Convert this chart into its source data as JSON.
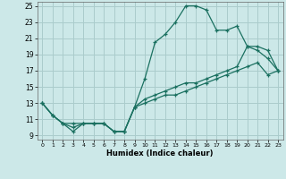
{
  "xlabel": "Humidex (Indice chaleur)",
  "background_color": "#cce8e8",
  "grid_color": "#aacccc",
  "line_color": "#1a7060",
  "xlim": [
    -0.5,
    23.5
  ],
  "ylim": [
    8.5,
    25.5
  ],
  "xticks": [
    0,
    1,
    2,
    3,
    4,
    5,
    6,
    7,
    8,
    9,
    10,
    11,
    12,
    13,
    14,
    15,
    16,
    17,
    18,
    19,
    20,
    21,
    22,
    23
  ],
  "yticks": [
    9,
    11,
    13,
    15,
    17,
    19,
    21,
    23,
    25
  ],
  "line1_x": [
    0,
    1,
    2,
    3,
    4,
    5,
    6,
    7,
    8,
    9,
    10,
    11,
    12,
    13,
    14,
    15,
    16,
    17,
    18,
    19,
    20,
    21,
    22,
    23
  ],
  "line1_y": [
    13,
    11.5,
    10.5,
    10,
    10.5,
    10.5,
    10.5,
    9.5,
    9.5,
    12.5,
    16,
    20.5,
    21.5,
    23,
    25,
    25,
    24.5,
    22,
    22,
    22.5,
    20,
    19.5,
    18.5,
    17
  ],
  "line2_x": [
    0,
    1,
    2,
    3,
    4,
    5,
    6,
    7,
    8,
    9,
    10,
    11,
    12,
    13,
    14,
    15,
    16,
    17,
    18,
    19,
    20,
    21,
    22,
    23
  ],
  "line2_y": [
    13,
    11.5,
    10.5,
    10.5,
    10.5,
    10.5,
    10.5,
    9.5,
    9.5,
    12.5,
    13.5,
    14,
    14.5,
    15,
    15.5,
    15.5,
    16,
    16.5,
    17,
    17.5,
    20.0,
    20,
    19.5,
    17
  ],
  "line3_x": [
    0,
    1,
    2,
    3,
    4,
    5,
    6,
    7,
    8,
    9,
    10,
    11,
    12,
    13,
    14,
    15,
    16,
    17,
    18,
    19,
    20,
    21,
    22,
    23
  ],
  "line3_y": [
    13,
    11.5,
    10.5,
    9.5,
    10.5,
    10.5,
    10.5,
    9.5,
    9.5,
    12.5,
    13,
    13.5,
    14,
    14,
    14.5,
    15,
    15.5,
    16,
    16.5,
    17,
    17.5,
    18,
    16.5,
    17
  ]
}
